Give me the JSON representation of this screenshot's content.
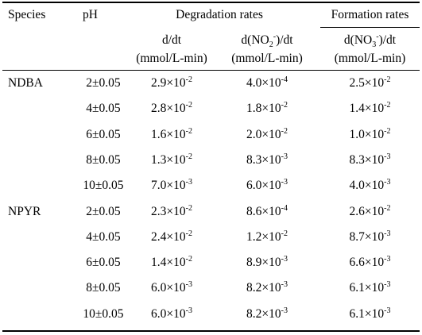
{
  "table": {
    "headers": {
      "species": "Species",
      "ph": "pH",
      "degradation": "Degradation rates",
      "formation": "Formation rates",
      "col_d_dt": "d/dt",
      "col_no2_dt_pre": "d(NO",
      "col_no2_sub": "2",
      "col_no2_sup": "-",
      "col_no2_dt_post": ")/dt",
      "col_no3_dt_pre": "d(NO",
      "col_no3_sub": "3",
      "col_no3_sup": "-",
      "col_no3_dt_post": ")/dt",
      "unit": "(mmol/L-min)"
    },
    "rows": [
      {
        "species": "NDBA",
        "ph": "2±0.05",
        "d": [
          "2.9×10",
          "-2"
        ],
        "no2": [
          "4.0×10",
          "-4"
        ],
        "no3": [
          "2.5×10",
          "-2"
        ]
      },
      {
        "species": "",
        "ph": "4±0.05",
        "d": [
          "2.8×10",
          "-2"
        ],
        "no2": [
          "1.8×10",
          "-2"
        ],
        "no3": [
          "1.4×10",
          "-2"
        ]
      },
      {
        "species": "",
        "ph": "6±0.05",
        "d": [
          "1.6×10",
          "-2"
        ],
        "no2": [
          "2.0×10",
          "-2"
        ],
        "no3": [
          "1.0×10",
          "-2"
        ]
      },
      {
        "species": "",
        "ph": "8±0.05",
        "d": [
          "1.3×10",
          "-2"
        ],
        "no2": [
          "8.3×10",
          "-3"
        ],
        "no3": [
          "8.3×10",
          "-3"
        ]
      },
      {
        "species": "",
        "ph": "10±0.05",
        "d": [
          "7.0×10",
          "-3"
        ],
        "no2": [
          "6.0×10",
          "-3"
        ],
        "no3": [
          "4.0×10",
          "-3"
        ]
      },
      {
        "species": "NPYR",
        "ph": "2±0.05",
        "d": [
          "2.3×10",
          "-2"
        ],
        "no2": [
          "8.6×10",
          "-4"
        ],
        "no3": [
          "2.6×10",
          "-2"
        ]
      },
      {
        "species": "",
        "ph": "4±0.05",
        "d": [
          "2.4×10",
          "-2"
        ],
        "no2": [
          "1.2×10",
          "-2"
        ],
        "no3": [
          "8.7×10",
          "-3"
        ]
      },
      {
        "species": "",
        "ph": "6±0.05",
        "d": [
          "1.4×10",
          "-2"
        ],
        "no2": [
          "8.9×10",
          "-3"
        ],
        "no3": [
          "6.6×10",
          "-3"
        ]
      },
      {
        "species": "",
        "ph": "8±0.05",
        "d": [
          "6.0×10",
          "-3"
        ],
        "no2": [
          "8.2×10",
          "-3"
        ],
        "no3": [
          "6.1×10",
          "-3"
        ]
      },
      {
        "species": "",
        "ph": "10±0.05",
        "d": [
          "6.0×10",
          "-3"
        ],
        "no2": [
          "8.2×10",
          "-3"
        ],
        "no3": [
          "6.1×10",
          "-3"
        ]
      }
    ]
  }
}
